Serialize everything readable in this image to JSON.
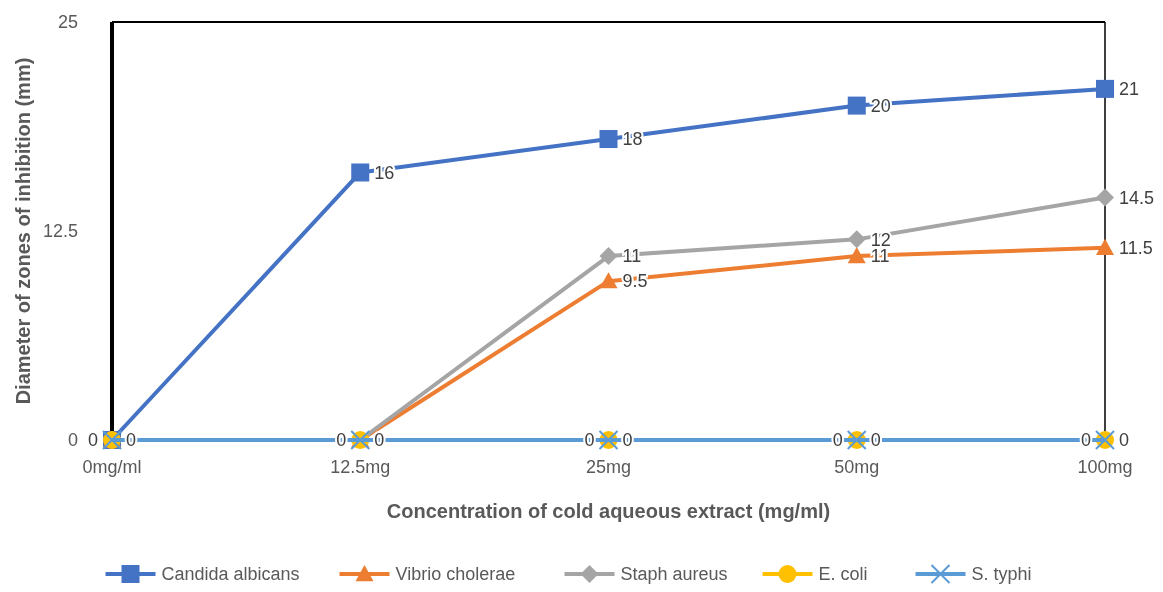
{
  "chart_data": {
    "type": "line",
    "xlabel": "Concentration of cold aqueous extract (mg/ml)",
    "ylabel": "Diameter of zones of inhibition (mm)",
    "categories": [
      "0mg/ml",
      "12.5mg",
      "25mg",
      "50mg",
      "100mg"
    ],
    "ylim": [
      0,
      25
    ],
    "yticks": [
      0,
      12.5,
      25
    ],
    "grid": false,
    "legend": "bottom",
    "series": [
      {
        "name": "Candida albicans",
        "color": "#4472c4",
        "marker": "square",
        "values": [
          0,
          16,
          18,
          20,
          21
        ],
        "value_labels": [
          "0",
          "16",
          "18",
          "20",
          "21"
        ]
      },
      {
        "name": "Vibrio cholerae",
        "color": "#ed7d31",
        "marker": "triangle",
        "values": [
          0,
          0,
          9.5,
          11,
          11.5
        ],
        "value_labels": [
          null,
          "0",
          "9.5",
          "11",
          "11.5"
        ]
      },
      {
        "name": "Staph aureus",
        "color": "#a5a5a5",
        "marker": "diamond",
        "values": [
          0,
          0,
          11,
          12,
          14.5
        ],
        "value_labels": [
          null,
          null,
          "11",
          "12",
          "14.5"
        ]
      },
      {
        "name": "E. coli",
        "color": "#ffc000",
        "marker": "circle",
        "values": [
          0,
          0,
          0,
          0,
          0
        ],
        "value_labels": [
          "0",
          "0",
          "0",
          "0",
          "0"
        ]
      },
      {
        "name": "S. typhi",
        "color": "#5b9bd5",
        "marker": "cross",
        "values": [
          0,
          0,
          0,
          0,
          0
        ],
        "value_labels": [
          null,
          null,
          "0",
          "0",
          "0"
        ]
      }
    ]
  }
}
